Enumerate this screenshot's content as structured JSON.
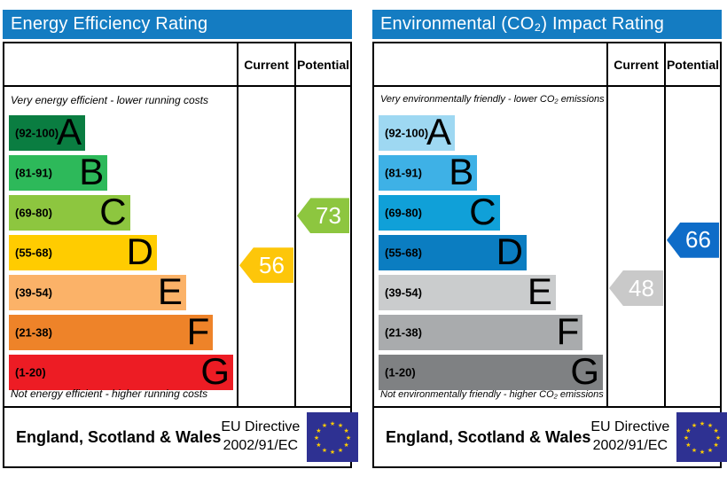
{
  "colors": {
    "title_bar_bg": "#147cc2",
    "title_text": "#ffffff",
    "table_border": "#000000",
    "eu_flag_bg": "#2e3192",
    "eu_flag_star": "#ffcc00"
  },
  "panels": [
    {
      "title": "Energy Efficiency Rating",
      "columns": {
        "current": "Current",
        "potential": "Potential"
      },
      "top_note": "Very energy efficient - lower running costs",
      "bottom_note": "Not energy efficient - higher running costs",
      "bands": [
        {
          "range_label": "(92-100)",
          "letter": "A",
          "low": 92,
          "high": 100,
          "color": "#0a7d41"
        },
        {
          "range_label": "(81-91)",
          "letter": "B",
          "low": 81,
          "high": 91,
          "color": "#2db95a"
        },
        {
          "range_label": "(69-80)",
          "letter": "C",
          "low": 69,
          "high": 80,
          "color": "#8dc63f"
        },
        {
          "range_label": "(55-68)",
          "letter": "D",
          "low": 55,
          "high": 68,
          "color": "#ffcc00"
        },
        {
          "range_label": "(39-54)",
          "letter": "E",
          "low": 39,
          "high": 54,
          "color": "#fbb268"
        },
        {
          "range_label": "(21-38)",
          "letter": "F",
          "low": 21,
          "high": 38,
          "color": "#ee8329"
        },
        {
          "range_label": "(1-20)",
          "letter": "G",
          "low": 1,
          "high": 20,
          "color": "#ed1c24"
        }
      ],
      "current": {
        "value": 56,
        "band": "D",
        "arrow_color": "#fdc60a"
      },
      "potential": {
        "value": 73,
        "band": "C",
        "arrow_color": "#8dc63f"
      },
      "footer": {
        "region": "England, Scotland & Wales",
        "directive_line1": "EU Directive",
        "directive_line2": "2002/91/EC"
      }
    },
    {
      "title": "Environmental (CO₂) Impact Rating",
      "columns": {
        "current": "Current",
        "potential": "Potential"
      },
      "top_note": "Very environmentally friendly - lower CO₂ emissions",
      "bottom_note": "Not environmentally friendly - higher CO₂ emissions",
      "bands": [
        {
          "range_label": "(92-100)",
          "letter": "A",
          "low": 92,
          "high": 100,
          "color": "#9ed8f2"
        },
        {
          "range_label": "(81-91)",
          "letter": "B",
          "low": 81,
          "high": 91,
          "color": "#3eb1e6"
        },
        {
          "range_label": "(69-80)",
          "letter": "C",
          "low": 69,
          "high": 80,
          "color": "#10a0d8"
        },
        {
          "range_label": "(55-68)",
          "letter": "D",
          "low": 55,
          "high": 68,
          "color": "#0b7dc1"
        },
        {
          "range_label": "(39-54)",
          "letter": "E",
          "low": 39,
          "high": 54,
          "color": "#cacccd"
        },
        {
          "range_label": "(21-38)",
          "letter": "F",
          "low": 21,
          "high": 38,
          "color": "#a9abad"
        },
        {
          "range_label": "(1-20)",
          "letter": "G",
          "low": 1,
          "high": 20,
          "color": "#7f8183"
        }
      ],
      "current": {
        "value": 48,
        "band": "E",
        "arrow_color": "#c9c9c9"
      },
      "potential": {
        "value": 66,
        "band": "D",
        "arrow_color": "#0e6cc8"
      },
      "footer": {
        "region": "England, Scotland & Wales",
        "directive_line1": "EU Directive",
        "directive_line2": "2002/91/EC"
      }
    }
  ],
  "chart_data": [
    {
      "type": "bar",
      "title": "Energy Efficiency Rating",
      "orientation": "horizontal",
      "categories": [
        "A (92-100)",
        "B (81-91)",
        "C (69-80)",
        "D (55-68)",
        "E (39-54)",
        "F (21-38)",
        "G (1-20)"
      ],
      "band_ranges": [
        [
          92,
          100
        ],
        [
          81,
          91
        ],
        [
          69,
          80
        ],
        [
          55,
          68
        ],
        [
          39,
          54
        ],
        [
          21,
          38
        ],
        [
          1,
          20
        ]
      ],
      "band_colors": [
        "#0a7d41",
        "#2db95a",
        "#8dc63f",
        "#ffcc00",
        "#fbb268",
        "#ee8329",
        "#ed1c24"
      ],
      "series": [
        {
          "name": "Current",
          "values": [
            56
          ],
          "band": "D",
          "color": "#fdc60a"
        },
        {
          "name": "Potential",
          "values": [
            73
          ],
          "band": "C",
          "color": "#8dc63f"
        }
      ],
      "xlabel": "",
      "ylabel": "",
      "value_range": [
        1,
        100
      ],
      "annotations": [
        "Very energy efficient - lower running costs",
        "Not energy efficient - higher running costs",
        "England, Scotland & Wales",
        "EU Directive 2002/91/EC"
      ]
    },
    {
      "type": "bar",
      "title": "Environmental (CO₂) Impact Rating",
      "orientation": "horizontal",
      "categories": [
        "A (92-100)",
        "B (81-91)",
        "C (69-80)",
        "D (55-68)",
        "E (39-54)",
        "F (21-38)",
        "G (1-20)"
      ],
      "band_ranges": [
        [
          92,
          100
        ],
        [
          81,
          91
        ],
        [
          69,
          80
        ],
        [
          55,
          68
        ],
        [
          39,
          54
        ],
        [
          21,
          38
        ],
        [
          1,
          20
        ]
      ],
      "band_colors": [
        "#9ed8f2",
        "#3eb1e6",
        "#10a0d8",
        "#0b7dc1",
        "#cacccd",
        "#a9abad",
        "#7f8183"
      ],
      "series": [
        {
          "name": "Current",
          "values": [
            48
          ],
          "band": "E",
          "color": "#c9c9c9"
        },
        {
          "name": "Potential",
          "values": [
            66
          ],
          "band": "D",
          "color": "#0e6cc8"
        }
      ],
      "xlabel": "",
      "ylabel": "",
      "value_range": [
        1,
        100
      ],
      "annotations": [
        "Very environmentally friendly - lower CO₂ emissions",
        "Not environmentally friendly - higher CO₂ emissions",
        "England, Scotland & Wales",
        "EU Directive 2002/91/EC"
      ]
    }
  ]
}
